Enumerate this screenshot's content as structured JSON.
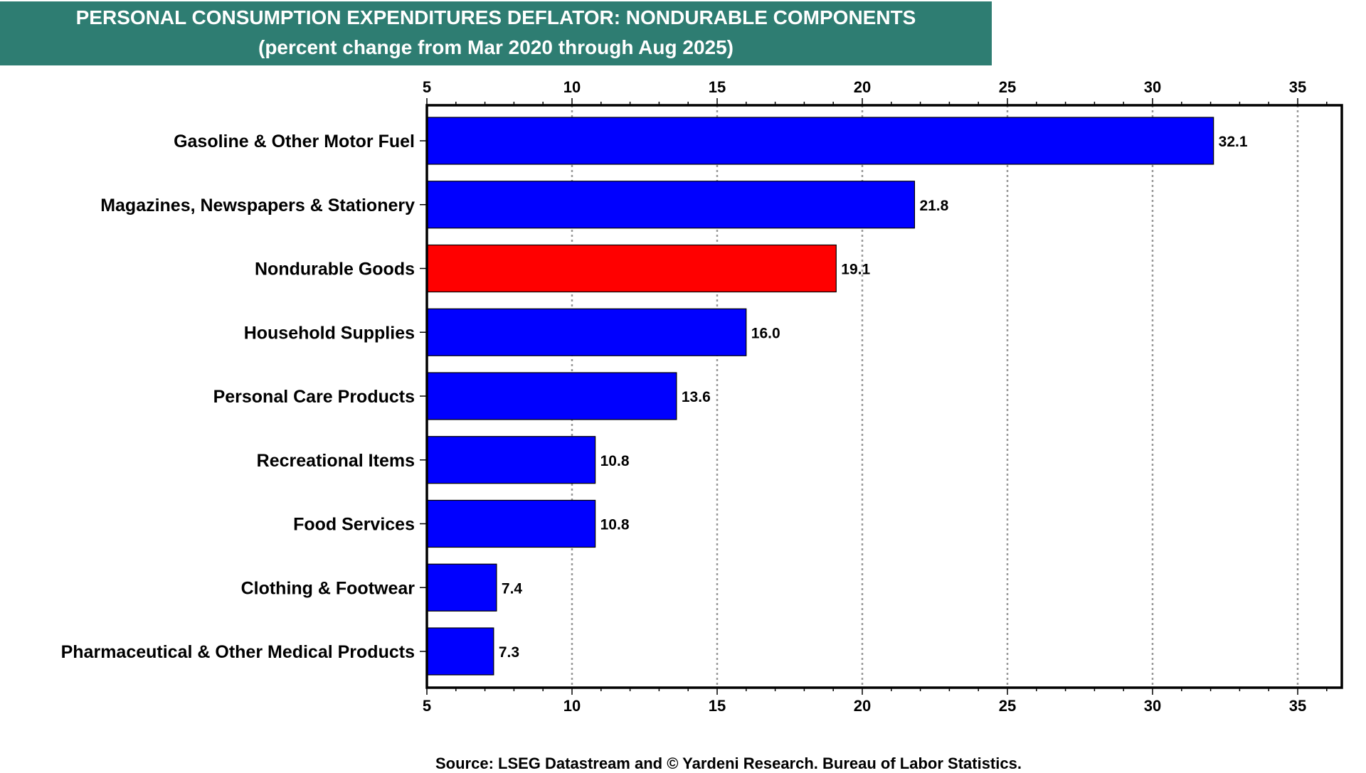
{
  "chart_data": {
    "type": "bar",
    "orientation": "horizontal",
    "title": "PERSONAL CONSUMPTION EXPENDITURES DEFLATOR: NONDURABLE COMPONENTS",
    "subtitle": "(percent change from Mar 2020 through Aug 2025)",
    "xlabel": "",
    "ylabel": "",
    "xlim": [
      5,
      36.8
    ],
    "x_ticks": [
      5,
      10,
      15,
      20,
      25,
      30,
      35
    ],
    "x_minor_step": 1,
    "grid": "vertical dotted at major ticks",
    "tick_labels_top_and_bottom": true,
    "categories": [
      "Gasoline & Other Motor Fuel",
      "Magazines, Newspapers & Stationery",
      "Nondurable Goods",
      "Household Supplies",
      "Personal Care Products",
      "Recreational Items",
      "Food Services",
      "Clothing & Footwear",
      "Pharmaceutical & Other Medical Products"
    ],
    "values": [
      32.1,
      21.8,
      19.1,
      16.0,
      13.6,
      10.8,
      10.8,
      7.4,
      7.3
    ],
    "value_labels": [
      "32.1",
      "21.8",
      "19.1",
      "16.0",
      "13.6",
      "10.8",
      "10.8",
      "7.4",
      "7.3"
    ],
    "highlight": [
      false,
      false,
      true,
      false,
      false,
      false,
      false,
      false,
      false
    ],
    "colors": {
      "default": "#0000ff",
      "highlight": "#ff0000",
      "banner": "#2e7d72",
      "grid": "#999999"
    },
    "source": "Source: LSEG Datastream and © Yardeni Research. Bureau of Labor Statistics."
  }
}
